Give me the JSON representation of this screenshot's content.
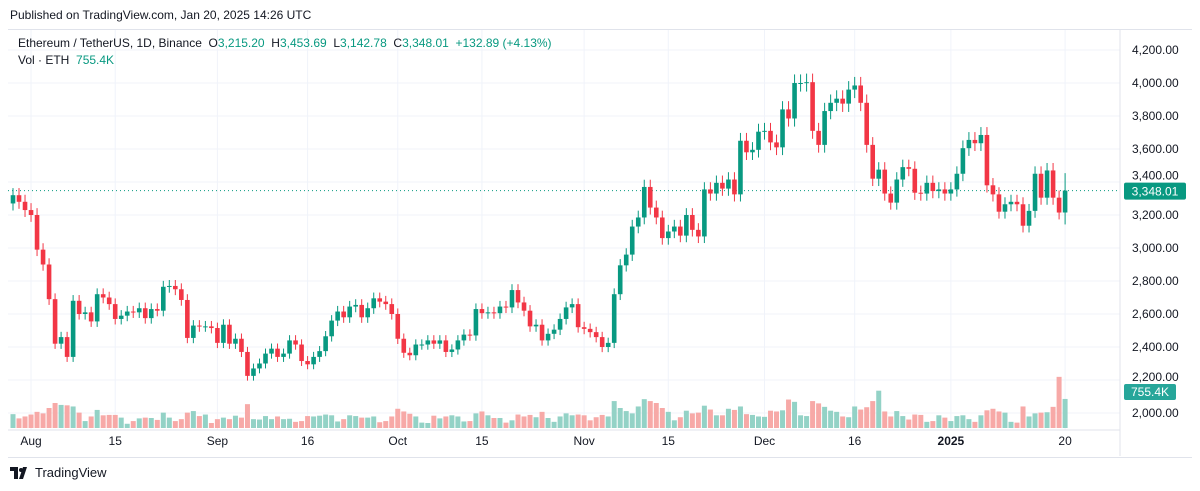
{
  "header": {
    "published": "Published on TradingView.com, Jan 20, 2025 14:26 UTC"
  },
  "legend": {
    "symbol": "Ethereum / TetherUS, 1D, Binance",
    "o_label": "O",
    "o": "3,215.20",
    "h_label": "H",
    "h": "3,453.69",
    "l_label": "L",
    "l": "3,142.78",
    "c_label": "C",
    "c": "3,348.01",
    "change": "+132.89 (+4.13%)",
    "vol_label": "Vol · ETH",
    "vol": "755.4K"
  },
  "footer": {
    "brand": "TradingView"
  },
  "colors": {
    "up": "#089981",
    "down": "#f23645",
    "vol_up": "#93d2c6",
    "vol_down": "#f7a9a7",
    "grid": "#f0f3fa"
  },
  "chart_data": {
    "type": "candlestick",
    "first_date": "2024-07-29",
    "interval": "1D",
    "ylim": [
      1900,
      4300
    ],
    "y_ticks": [
      "4,200.00",
      "4,000.00",
      "3,800.00",
      "3,600.00",
      "3,400.00",
      "3,200.00",
      "3,000.00",
      "2,800.00",
      "2,600.00",
      "2,400.00",
      "2,200.00",
      "2,000.00"
    ],
    "y_tick_values": [
      4200,
      4000,
      3800,
      3600,
      3400,
      3200,
      3000,
      2800,
      2600,
      2400,
      2200,
      2000
    ],
    "x_ticks": [
      {
        "label": "Aug",
        "date": "2024-08-01"
      },
      {
        "label": "15",
        "date": "2024-08-15"
      },
      {
        "label": "Sep",
        "date": "2024-09-01"
      },
      {
        "label": "16",
        "date": "2024-09-16"
      },
      {
        "label": "Oct",
        "date": "2024-10-01"
      },
      {
        "label": "15",
        "date": "2024-10-15"
      },
      {
        "label": "Nov",
        "date": "2024-11-01"
      },
      {
        "label": "15",
        "date": "2024-11-15"
      },
      {
        "label": "Dec",
        "date": "2024-12-01"
      },
      {
        "label": "16",
        "date": "2024-12-16"
      },
      {
        "label": "2025",
        "date": "2025-01-01"
      },
      {
        "label": "20",
        "date": "2025-01-20"
      }
    ],
    "first_open": 3270,
    "close": [
      3320,
      3280,
      3230,
      3200,
      2990,
      2900,
      2690,
      2420,
      2460,
      2340,
      2680,
      2600,
      2610,
      2555,
      2720,
      2700,
      2660,
      2570,
      2590,
      2615,
      2610,
      2635,
      2575,
      2630,
      2620,
      2765,
      2770,
      2750,
      2685,
      2455,
      2530,
      2525,
      2525,
      2515,
      2425,
      2535,
      2420,
      2450,
      2370,
      2225,
      2270,
      2300,
      2360,
      2390,
      2340,
      2360,
      2440,
      2415,
      2315,
      2295,
      2340,
      2375,
      2465,
      2560,
      2615,
      2580,
      2645,
      2655,
      2580,
      2635,
      2695,
      2675,
      2660,
      2600,
      2450,
      2365,
      2350,
      2415,
      2415,
      2440,
      2420,
      2440,
      2370,
      2385,
      2440,
      2475,
      2470,
      2630,
      2605,
      2610,
      2605,
      2645,
      2640,
      2745,
      2670,
      2620,
      2525,
      2535,
      2440,
      2480,
      2505,
      2570,
      2640,
      2660,
      2520,
      2510,
      2490,
      2460,
      2400,
      2425,
      2720,
      2895,
      2960,
      3130,
      3185,
      3370,
      3245,
      3185,
      3060,
      3100,
      3130,
      3075,
      3200,
      3110,
      3070,
      3355,
      3330,
      3395,
      3360,
      3415,
      3325,
      3650,
      3580,
      3595,
      3705,
      3710,
      3640,
      3610,
      3840,
      3785,
      4000,
      4000,
      4005,
      3710,
      3625,
      3830,
      3880,
      3905,
      3875,
      3960,
      3985,
      3880,
      3625,
      3420,
      3475,
      3330,
      3275,
      3415,
      3490,
      3480,
      3335,
      3330,
      3395,
      3345,
      3355,
      3330,
      3355,
      3450,
      3605,
      3655,
      3635,
      3685,
      3380,
      3325,
      3220,
      3265,
      3280,
      3265,
      3135,
      3225,
      3450,
      3305,
      3470,
      3305,
      3215,
      3348.01
    ],
    "last_candle": {
      "open": 3215.2,
      "high": 3453.69,
      "low": 3142.78,
      "close": 3348.01
    },
    "volume_k": [
      360,
      250,
      300,
      350,
      420,
      380,
      520,
      650,
      600,
      590,
      560,
      400,
      180,
      300,
      470,
      330,
      340,
      340,
      270,
      110,
      180,
      250,
      270,
      260,
      210,
      400,
      270,
      180,
      230,
      400,
      440,
      310,
      350,
      130,
      230,
      270,
      230,
      320,
      270,
      620,
      230,
      220,
      310,
      230,
      300,
      230,
      240,
      160,
      180,
      310,
      300,
      320,
      350,
      330,
      170,
      230,
      330,
      310,
      270,
      270,
      300,
      150,
      180,
      300,
      500,
      430,
      370,
      300,
      140,
      130,
      320,
      250,
      300,
      330,
      300,
      170,
      180,
      380,
      430,
      330,
      260,
      260,
      140,
      200,
      350,
      300,
      340,
      280,
      420,
      260,
      160,
      300,
      380,
      330,
      350,
      330,
      200,
      280,
      340,
      300,
      700,
      520,
      440,
      380,
      560,
      750,
      700,
      650,
      520,
      420,
      200,
      280,
      450,
      380,
      400,
      580,
      480,
      330,
      330,
      500,
      470,
      560,
      360,
      340,
      300,
      290,
      450,
      430,
      460,
      740,
      680,
      330,
      310,
      700,
      640,
      550,
      450,
      420,
      300,
      280,
      560,
      480,
      540,
      700,
      970,
      430,
      300,
      440,
      310,
      220,
      350,
      340,
      160,
      180,
      330,
      270,
      180,
      310,
      330,
      230,
      160,
      330,
      460,
      500,
      430,
      400,
      160,
      140,
      560,
      300,
      380,
      400,
      410,
      550,
      1330,
      755.4
    ],
    "last_price_label": "3,348.01",
    "last_volume_label": "755.4K"
  }
}
